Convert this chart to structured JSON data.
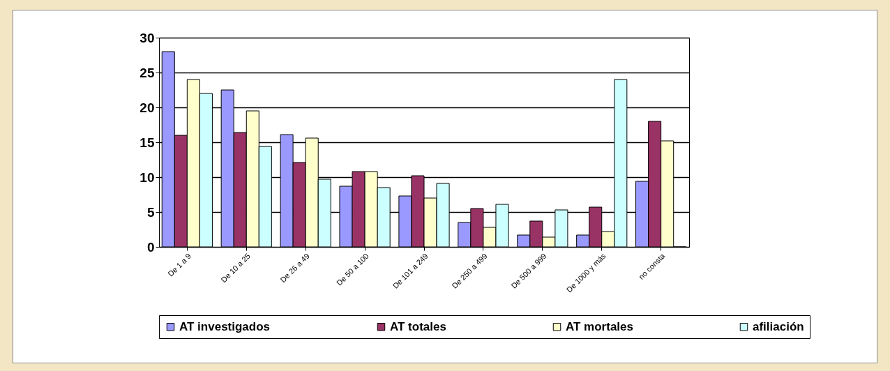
{
  "chart_data": {
    "type": "bar",
    "categories": [
      "De 1 a 9",
      "De 10 a 25",
      "De 26 a 49",
      "De 50 a 100",
      "De 101 a 249",
      "De 250 a 499",
      "De 500 a 999",
      "De 1000 y más",
      "no consta"
    ],
    "series": [
      {
        "name": "AT investigados",
        "color": "#9999ff",
        "values": [
          28,
          22.5,
          16.1,
          8.7,
          7.3,
          3.5,
          1.7,
          1.7,
          9.4
        ]
      },
      {
        "name": "AT totales",
        "color": "#993366",
        "values": [
          16,
          16.4,
          12.1,
          10.8,
          10.2,
          5.5,
          3.7,
          5.7,
          18
        ]
      },
      {
        "name": "AT mortales",
        "color": "#ffffcc",
        "values": [
          24,
          19.5,
          15.6,
          10.8,
          7,
          2.8,
          1.4,
          2.2,
          15.2
        ]
      },
      {
        "name": "afiliación",
        "color": "#ccffff",
        "values": [
          22,
          14.4,
          9.7,
          8.5,
          9.1,
          6.1,
          5.3,
          24,
          0
        ]
      }
    ],
    "ylim": [
      0,
      30
    ],
    "yticks": [
      0,
      5,
      10,
      15,
      20,
      25,
      30
    ],
    "grid": "y",
    "legend": "bottom"
  }
}
